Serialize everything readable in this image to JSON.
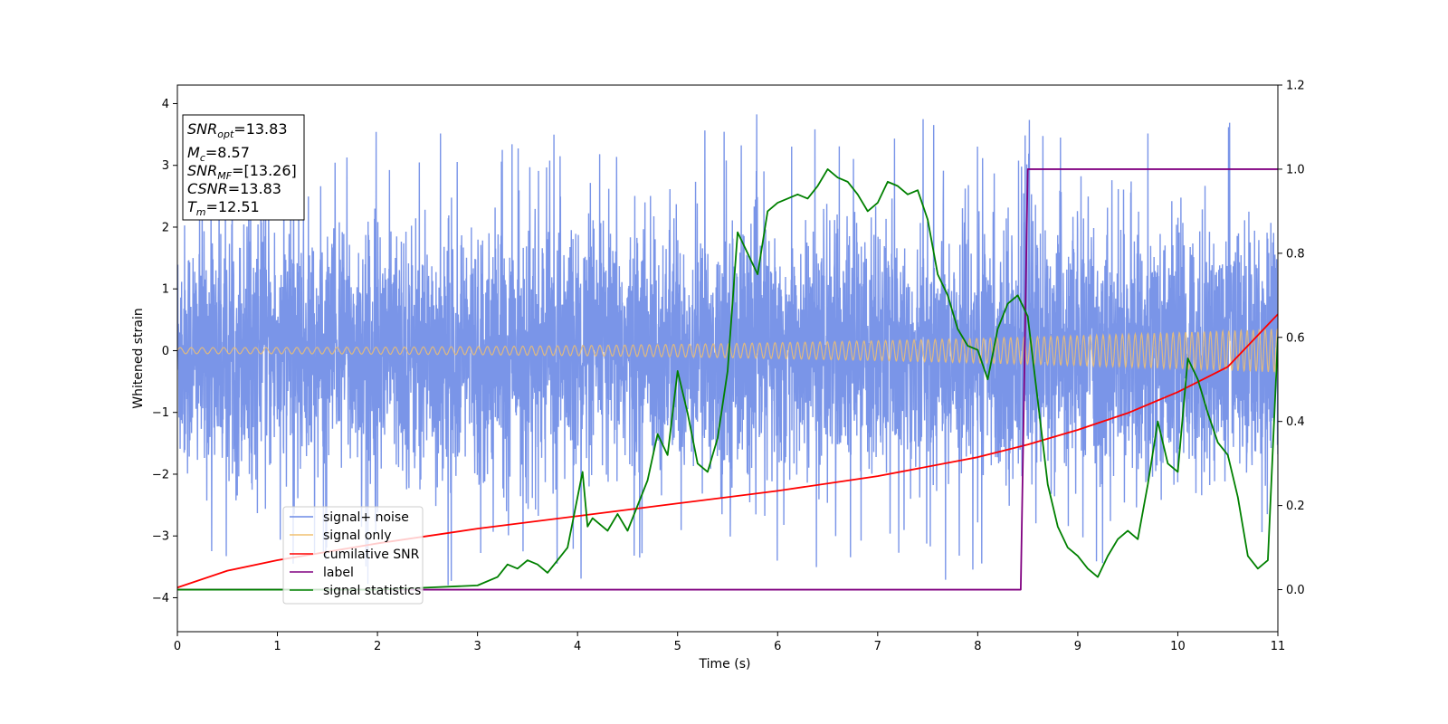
{
  "chart_data": {
    "type": "line",
    "xlabel": "Time (s)",
    "ylabel": "Whitened strain",
    "xlim": [
      0,
      11
    ],
    "ylim": [
      -4.55,
      4.3
    ],
    "y2lim": [
      -0.1,
      1.2
    ],
    "xticks": [
      "0",
      "1",
      "2",
      "3",
      "4",
      "5",
      "6",
      "7",
      "8",
      "9",
      "10",
      "11"
    ],
    "yticks": [
      "−4",
      "−3",
      "−2",
      "−1",
      "0",
      "1",
      "2",
      "3",
      "4"
    ],
    "yticks_values": [
      -4,
      -3,
      -2,
      -1,
      0,
      1,
      2,
      3,
      4
    ],
    "y2ticks": [
      "0.0",
      "0.2",
      "0.4",
      "0.6",
      "0.8",
      "1.0",
      "1.2"
    ],
    "y2ticks_values": [
      0.0,
      0.2,
      0.4,
      0.6,
      0.8,
      1.0,
      1.2
    ],
    "grid": false,
    "legend_position": "lower-left",
    "info_box": {
      "snr_opt": {
        "base": "SNR",
        "sub": "opt",
        "value": "=13.83"
      },
      "mc": {
        "base": "M",
        "sub": "c",
        "value": "=8.57"
      },
      "snr_mf": {
        "base": "SNR",
        "sub": "MF",
        "value": "=[13.26]"
      },
      "csnr": {
        "base": "CSNR",
        "value": "=13.83"
      },
      "tm": {
        "base": "T",
        "sub": "m",
        "value": "=12.51"
      }
    },
    "series": [
      {
        "name": "signal+ noise",
        "color": "#6b8ae6",
        "axis": "left",
        "description": "noise band spanning roughly −2.5 to 2.5 with spikes to about ±3.9",
        "band": [
          -2.5,
          2.5
        ],
        "peaks": [
          3.92,
          -4.15
        ]
      },
      {
        "name": "signal only",
        "color": "#f0c070",
        "axis": "left",
        "description": "sinusoidal chirp with amplitude growing from ~0.05 to ~0.35",
        "amplitude_start": 0.05,
        "amplitude_end": 0.35
      },
      {
        "name": "cumilative SNR",
        "color": "#ff0000",
        "axis": "right",
        "x": [
          0,
          0.5,
          1,
          2,
          3,
          4,
          5,
          6,
          7,
          8,
          8.5,
          9,
          9.5,
          10,
          10.5,
          11
        ],
        "values": [
          0.005,
          0.045,
          0.07,
          0.11,
          0.145,
          0.175,
          0.205,
          0.235,
          0.27,
          0.315,
          0.345,
          0.38,
          0.42,
          0.47,
          0.53,
          0.655
        ]
      },
      {
        "name": "label",
        "color": "#800080",
        "axis": "right",
        "x": [
          0,
          8.43,
          8.5,
          11
        ],
        "values": [
          0,
          0,
          1,
          1
        ]
      },
      {
        "name": "signal statistics",
        "color": "#008000",
        "axis": "right",
        "x": [
          0.0,
          0.5,
          1.0,
          1.5,
          2.0,
          2.5,
          3.0,
          3.2,
          3.3,
          3.4,
          3.5,
          3.6,
          3.7,
          3.8,
          3.9,
          4.0,
          4.05,
          4.1,
          4.15,
          4.2,
          4.3,
          4.4,
          4.5,
          4.6,
          4.7,
          4.8,
          4.9,
          5.0,
          5.1,
          5.2,
          5.3,
          5.4,
          5.5,
          5.6,
          5.7,
          5.8,
          5.9,
          6.0,
          6.1,
          6.2,
          6.3,
          6.4,
          6.5,
          6.6,
          6.7,
          6.8,
          6.9,
          7.0,
          7.1,
          7.2,
          7.3,
          7.4,
          7.5,
          7.6,
          7.7,
          7.8,
          7.9,
          8.0,
          8.1,
          8.2,
          8.3,
          8.4,
          8.5,
          8.6,
          8.7,
          8.8,
          8.9,
          9.0,
          9.1,
          9.2,
          9.3,
          9.4,
          9.5,
          9.6,
          9.7,
          9.8,
          9.9,
          10.0,
          10.1,
          10.2,
          10.3,
          10.4,
          10.5,
          10.6,
          10.7,
          10.8,
          10.9,
          11.0
        ],
        "values": [
          0.0,
          0.0,
          0.0,
          0.0,
          0.0,
          0.005,
          0.01,
          0.03,
          0.06,
          0.05,
          0.07,
          0.06,
          0.04,
          0.07,
          0.1,
          0.22,
          0.28,
          0.15,
          0.17,
          0.16,
          0.14,
          0.18,
          0.14,
          0.2,
          0.26,
          0.37,
          0.32,
          0.52,
          0.42,
          0.3,
          0.28,
          0.36,
          0.52,
          0.85,
          0.8,
          0.75,
          0.9,
          0.92,
          0.93,
          0.94,
          0.93,
          0.96,
          1.0,
          0.98,
          0.97,
          0.94,
          0.9,
          0.92,
          0.97,
          0.96,
          0.94,
          0.95,
          0.88,
          0.75,
          0.7,
          0.62,
          0.58,
          0.57,
          0.5,
          0.62,
          0.68,
          0.7,
          0.65,
          0.45,
          0.25,
          0.15,
          0.1,
          0.08,
          0.05,
          0.03,
          0.08,
          0.12,
          0.14,
          0.12,
          0.25,
          0.4,
          0.3,
          0.28,
          0.55,
          0.5,
          0.42,
          0.35,
          0.32,
          0.22,
          0.08,
          0.05,
          0.07,
          0.6
        ]
      }
    ]
  }
}
